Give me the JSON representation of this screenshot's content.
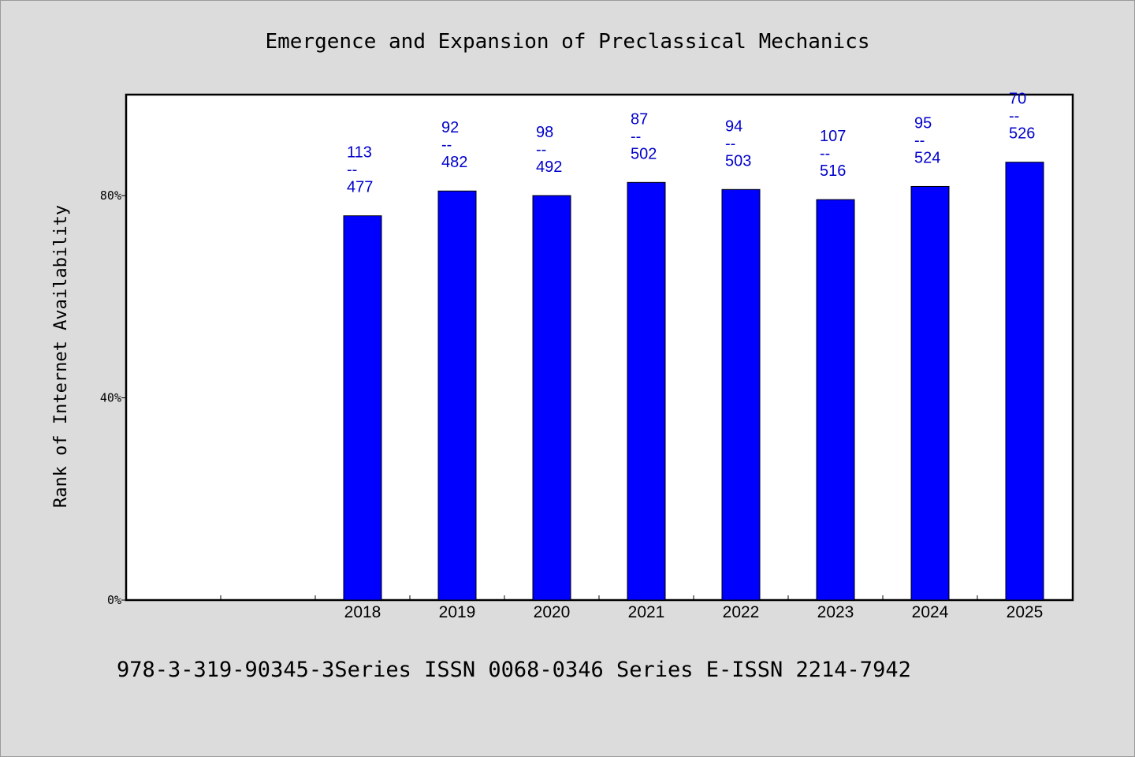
{
  "chart_data": {
    "type": "bar",
    "title": "Emergence and Expansion of Preclassical Mechanics",
    "ylabel": "Rank of Internet Availability",
    "xlabel": "",
    "ylim": [
      0,
      100
    ],
    "yticks": [
      0,
      40,
      80
    ],
    "ytick_labels": [
      "0%",
      "40%",
      "80%"
    ],
    "categories": [
      "2018",
      "2019",
      "2020",
      "2021",
      "2022",
      "2023",
      "2024",
      "2025"
    ],
    "values": [
      76,
      80.9,
      80,
      82.6,
      81.2,
      79.2,
      81.8,
      86.6
    ],
    "bar_labels": [
      [
        "113",
        "--",
        "477"
      ],
      [
        "92",
        "--",
        "482"
      ],
      [
        "98",
        "--",
        "492"
      ],
      [
        "87",
        "--",
        "502"
      ],
      [
        "94",
        "--",
        "503"
      ],
      [
        "107",
        "--",
        "516"
      ],
      [
        "95",
        "--",
        "524"
      ],
      [
        "70",
        "--",
        "526"
      ]
    ],
    "bar_color": "#0000ff",
    "label_color": "#0000cc",
    "grid": false,
    "legend": "none"
  },
  "footer": {
    "text": "978-3-319-90345-3Series ISSN 0068-0346 Series E-ISSN 2214-7942"
  }
}
